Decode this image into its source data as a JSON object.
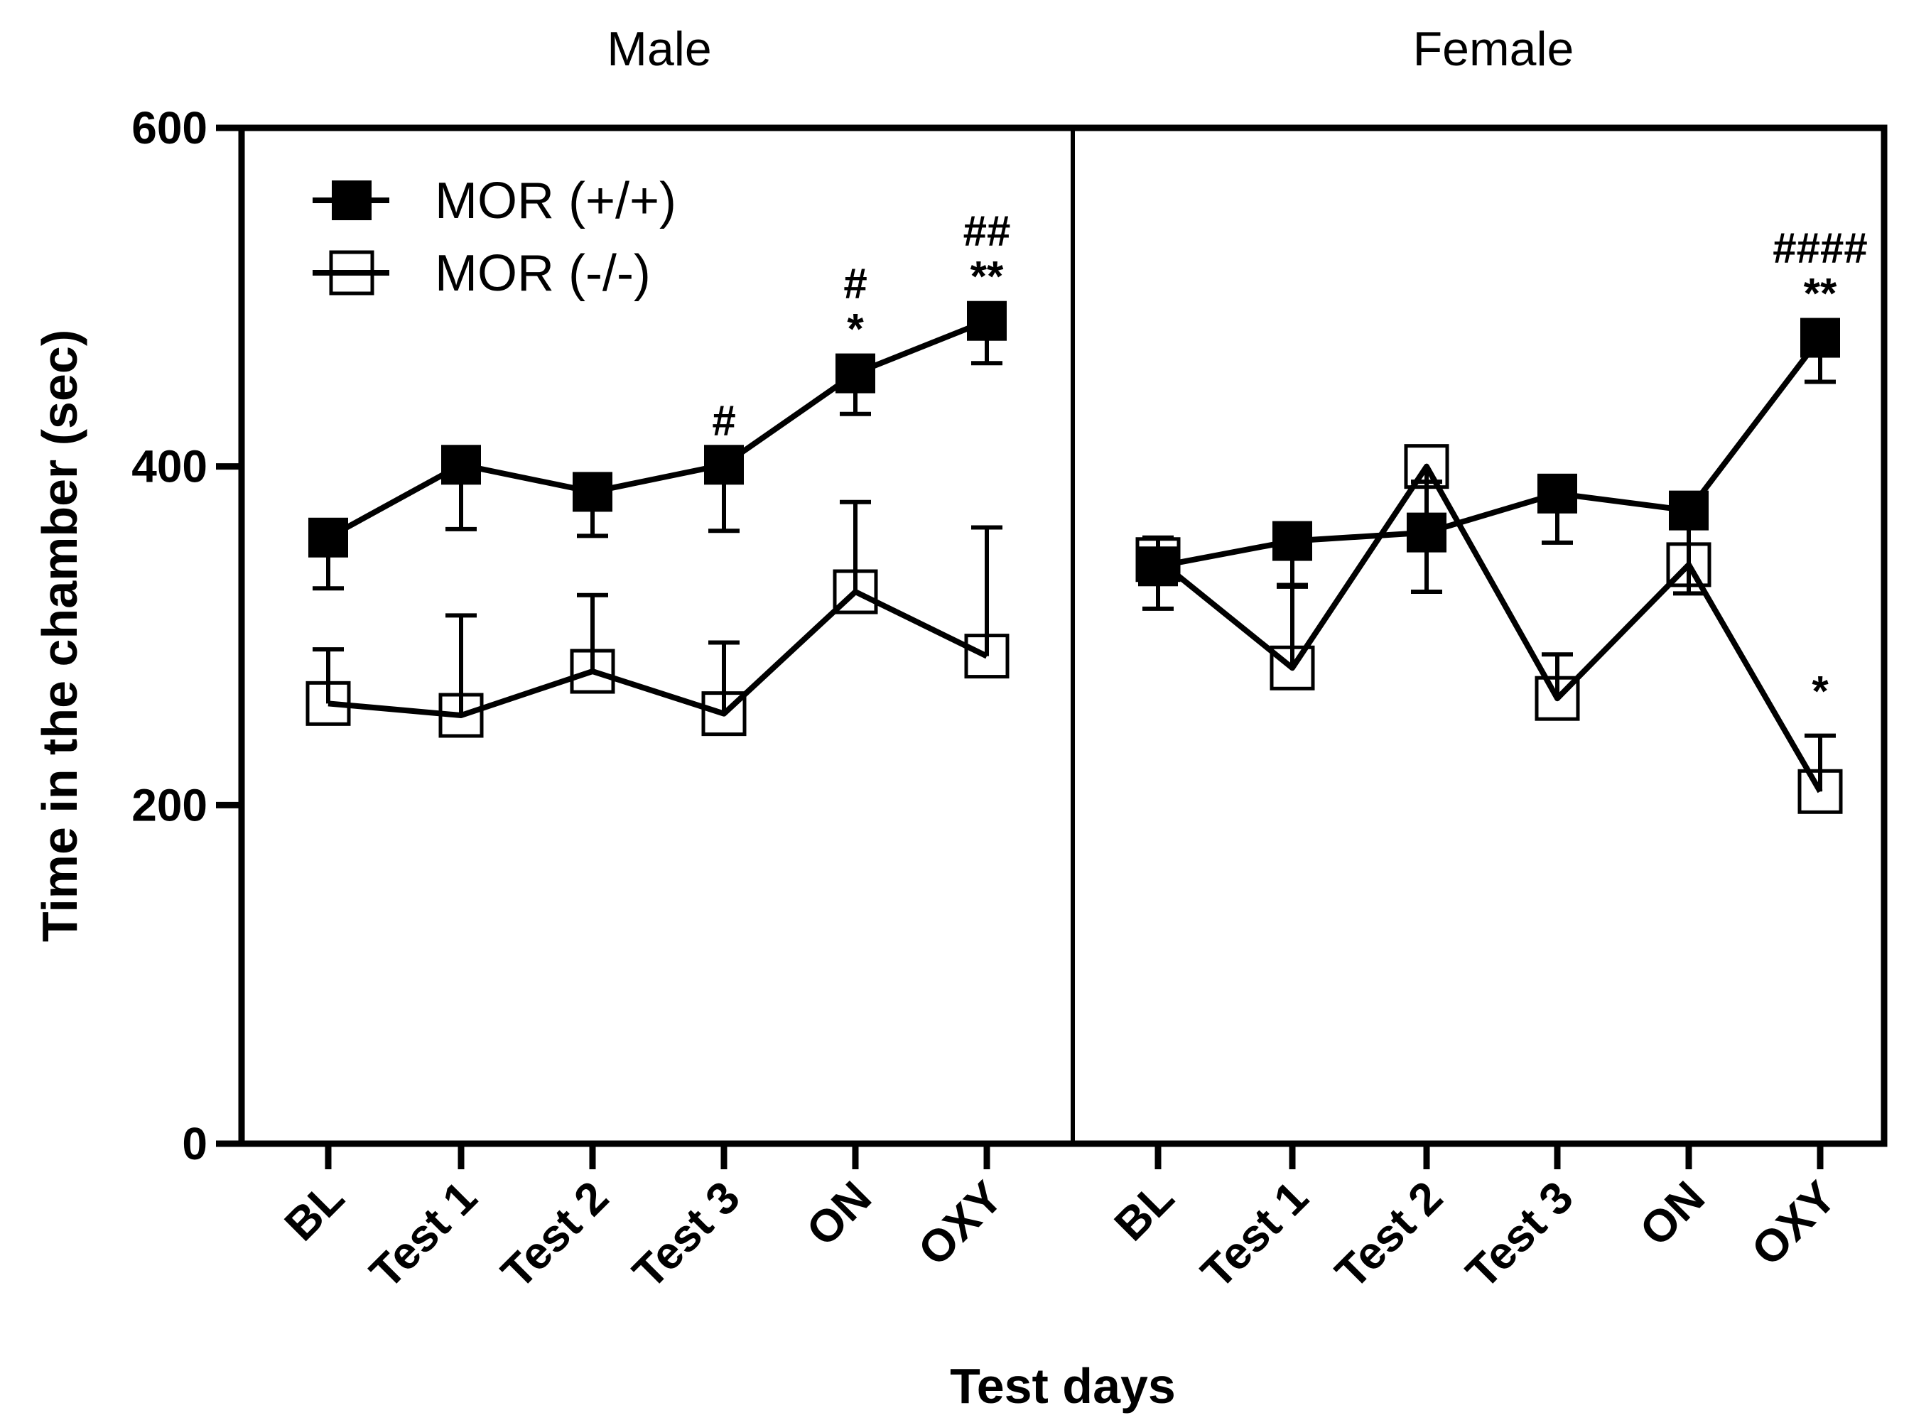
{
  "chart_data": {
    "type": "line",
    "ylabel": "Time in the chamber (sec)",
    "xlabel": "Test days",
    "ylim": [
      0,
      600
    ],
    "yticks": [
      "0",
      "200",
      "400",
      "600"
    ],
    "categories": [
      "BL",
      "Test 1",
      "Test 2",
      "Test 3",
      "ON",
      "OXY"
    ],
    "legend": [
      {
        "name": "MOR (+/+)",
        "marker": "filled-square"
      },
      {
        "name": "MOR (-/-)",
        "marker": "open-square"
      }
    ],
    "panels": [
      {
        "title": "Male",
        "series": [
          {
            "name": "MOR (+/+)",
            "values": [
              358,
              401,
              385,
              401,
              455,
              486
            ],
            "err": [
              30,
              38,
              26,
              39,
              24,
              25
            ]
          },
          {
            "name": "MOR (-/-)",
            "values": [
              260,
              253,
              279,
              254,
              326,
              288
            ],
            "err": [
              32,
              59,
              45,
              42,
              53,
              76
            ]
          }
        ],
        "annotations": [
          {
            "category": "Test 3",
            "lines": [
              "#"
            ]
          },
          {
            "category": "ON",
            "lines": [
              "#",
              "*"
            ]
          },
          {
            "category": "OXY",
            "lines": [
              "##",
              "**"
            ]
          }
        ]
      },
      {
        "title": "Female",
        "series": [
          {
            "name": "MOR (+/+)",
            "values": [
              341,
              356,
              361,
              384,
              374,
              476
            ],
            "err": [
              17,
              26,
              30,
              29,
              49,
              26
            ]
          },
          {
            "name": "MOR (-/-)",
            "values": [
              345,
              281,
              400,
              263,
              342,
              208
            ],
            "err": [
              29,
              48,
              74,
              26,
              22,
              33
            ]
          }
        ],
        "annotations": [
          {
            "category": "OXY",
            "series": "MOR (+/+)",
            "lines": [
              "####",
              "**"
            ]
          },
          {
            "category": "OXY",
            "series": "MOR (-/-)",
            "lines": [
              "*"
            ]
          }
        ]
      }
    ]
  }
}
